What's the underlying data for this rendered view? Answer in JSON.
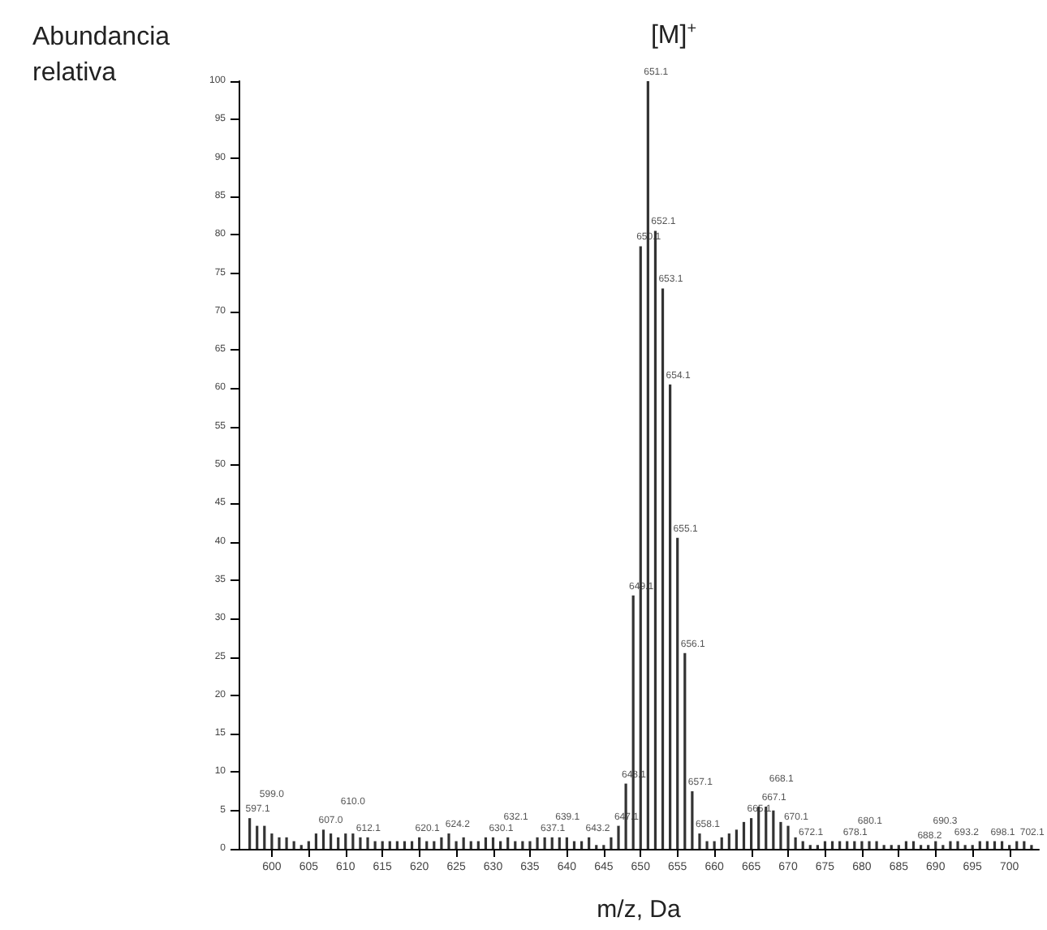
{
  "chart_data": {
    "type": "bar",
    "title": "[M]$^{+}$",
    "xlabel": "m/z, Da",
    "ylabel": "Abundancia relativa",
    "x": [
      597,
      598,
      599,
      600,
      601,
      602,
      603,
      604,
      605,
      606,
      607,
      608,
      609,
      610,
      611,
      612,
      613,
      614,
      615,
      616,
      617,
      618,
      619,
      620,
      621,
      622,
      623,
      624,
      625,
      626,
      627,
      628,
      629,
      630,
      631,
      632,
      633,
      634,
      635,
      636,
      637,
      638,
      639,
      640,
      641,
      642,
      643,
      644,
      645,
      646,
      647,
      648,
      649,
      650,
      651,
      652,
      653,
      654,
      655,
      656,
      657,
      658,
      659,
      660,
      661,
      662,
      663,
      664,
      665,
      666,
      667,
      668,
      669,
      670,
      671,
      672,
      673,
      674,
      675,
      676,
      677,
      678,
      679,
      680,
      681,
      682,
      683,
      684,
      685,
      686,
      687,
      688,
      689,
      690,
      691,
      692,
      693,
      694,
      695,
      696,
      697,
      698,
      699,
      700,
      701,
      702,
      703
    ],
    "values": [
      4,
      3,
      3,
      2,
      1.5,
      1.5,
      1,
      0.5,
      1,
      2,
      2.5,
      2,
      1.5,
      2,
      2,
      1.5,
      1.5,
      1,
      1,
      1,
      1,
      1,
      1,
      1.5,
      1,
      1,
      1.5,
      2,
      1,
      1.5,
      1,
      1,
      1.5,
      1.5,
      1,
      1.5,
      1,
      1,
      1,
      1.5,
      1.5,
      1.5,
      1.5,
      1.5,
      1,
      1,
      1.5,
      0.5,
      0.5,
      1.5,
      3,
      8.5,
      33,
      78.5,
      100,
      80.5,
      73,
      60.5,
      40.5,
      25.5,
      7.5,
      2,
      1,
      1,
      1.5,
      2,
      2.5,
      3.5,
      4,
      5.5,
      5.5,
      5,
      3.5,
      3,
      1.5,
      1,
      0.5,
      0.5,
      1,
      1,
      1,
      1,
      1,
      1,
      1,
      1,
      0.5,
      0.5,
      0.5,
      1,
      1,
      0.5,
      0.5,
      1,
      0.5,
      1,
      1,
      0.5,
      0.5,
      1,
      1,
      1,
      1,
      0.5,
      1,
      1,
      0.5
    ],
    "color": "#333333",
    "xlim": [
      595.5,
      704
    ],
    "xticks": [
      600,
      605,
      610,
      615,
      620,
      625,
      630,
      635,
      640,
      645,
      650,
      655,
      660,
      665,
      670,
      675,
      680,
      685,
      690,
      695,
      700
    ],
    "ylim": [
      0,
      100
    ],
    "yticks": [
      0,
      5,
      10,
      15,
      20,
      25,
      30,
      35,
      40,
      45,
      50,
      55,
      60,
      65,
      70,
      75,
      80,
      85,
      90,
      95,
      100
    ],
    "grid": false,
    "annotations": [
      {
        "text": "597.1",
        "x": 597.1,
        "y": 4
      },
      {
        "text": "599.0",
        "x": 599.0,
        "y": 3
      },
      {
        "text": "607.0",
        "x": 607.0,
        "y": 2.5
      },
      {
        "text": "610.0",
        "x": 610.0,
        "y": 2
      },
      {
        "text": "612.1",
        "x": 612.1,
        "y": 1.5
      },
      {
        "text": "620.1",
        "x": 620.1,
        "y": 1.5
      },
      {
        "text": "624.2",
        "x": 624.2,
        "y": 2
      },
      {
        "text": "630.1",
        "x": 630.1,
        "y": 1.5
      },
      {
        "text": "632.1",
        "x": 632.1,
        "y": 1.5
      },
      {
        "text": "637.1",
        "x": 637.1,
        "y": 1.5
      },
      {
        "text": "639.1",
        "x": 639.1,
        "y": 1.5
      },
      {
        "text": "643.2",
        "x": 643.2,
        "y": 1.5
      },
      {
        "text": "647.1",
        "x": 647.1,
        "y": 3
      },
      {
        "text": "648.1",
        "x": 648.1,
        "y": 8.5
      },
      {
        "text": "649.1",
        "x": 649.1,
        "y": 33
      },
      {
        "text": "650.1",
        "x": 650.1,
        "y": 78.5
      },
      {
        "text": "651.1",
        "x": 651.1,
        "y": 100
      },
      {
        "text": "652.1",
        "x": 652.1,
        "y": 80.5
      },
      {
        "text": "653.1",
        "x": 653.1,
        "y": 73
      },
      {
        "text": "654.1",
        "x": 654.1,
        "y": 60.5
      },
      {
        "text": "655.1",
        "x": 655.1,
        "y": 40.5
      },
      {
        "text": "656.1",
        "x": 656.1,
        "y": 25.5
      },
      {
        "text": "657.1",
        "x": 657.1,
        "y": 7.5
      },
      {
        "text": "658.1",
        "x": 658.1,
        "y": 2
      },
      {
        "text": "665.1",
        "x": 665.1,
        "y": 4
      },
      {
        "text": "667.1",
        "x": 667.1,
        "y": 5.5
      },
      {
        "text": "668.1",
        "x": 668.1,
        "y": 5
      },
      {
        "text": "670.1",
        "x": 670.1,
        "y": 3
      },
      {
        "text": "672.1",
        "x": 672.1,
        "y": 1
      },
      {
        "text": "678.1",
        "x": 678.1,
        "y": 1
      },
      {
        "text": "680.1",
        "x": 680.1,
        "y": 1
      },
      {
        "text": "688.2",
        "x": 688.2,
        "y": 0.5
      },
      {
        "text": "690.3",
        "x": 690.3,
        "y": 1
      },
      {
        "text": "693.2",
        "x": 693.2,
        "y": 1
      },
      {
        "text": "698.1",
        "x": 698.1,
        "y": 1
      },
      {
        "text": "702.1",
        "x": 702.1,
        "y": 1
      }
    ]
  }
}
